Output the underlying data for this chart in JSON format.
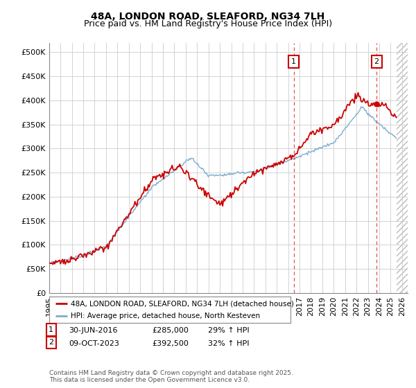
{
  "title": "48A, LONDON ROAD, SLEAFORD, NG34 7LH",
  "subtitle": "Price paid vs. HM Land Registry's House Price Index (HPI)",
  "ylabel_ticks": [
    "£0",
    "£50K",
    "£100K",
    "£150K",
    "£200K",
    "£250K",
    "£300K",
    "£350K",
    "£400K",
    "£450K",
    "£500K"
  ],
  "ytick_values": [
    0,
    50000,
    100000,
    150000,
    200000,
    250000,
    300000,
    350000,
    400000,
    450000,
    500000
  ],
  "ylim": [
    0,
    520000
  ],
  "xlim_start": 1995.0,
  "xlim_end": 2026.5,
  "red_color": "#cc0000",
  "blue_color": "#7aadcf",
  "marker1_x": 2016.5,
  "marker2_x": 2023.77,
  "annotation1_label": "1",
  "annotation2_label": "2",
  "table_row1": [
    "1",
    "30-JUN-2016",
    "£285,000",
    "29% ↑ HPI"
  ],
  "table_row2": [
    "2",
    "09-OCT-2023",
    "£392,500",
    "32% ↑ HPI"
  ],
  "legend_red": "48A, LONDON ROAD, SLEAFORD, NG34 7LH (detached house)",
  "legend_blue": "HPI: Average price, detached house, North Kesteven",
  "footnote": "Contains HM Land Registry data © Crown copyright and database right 2025.\nThis data is licensed under the Open Government Licence v3.0.",
  "bg_color": "#ffffff",
  "grid_color": "#cccccc",
  "title_fontsize": 10,
  "subtitle_fontsize": 9,
  "tick_fontsize": 8,
  "hatched_region_start": 2025.5
}
